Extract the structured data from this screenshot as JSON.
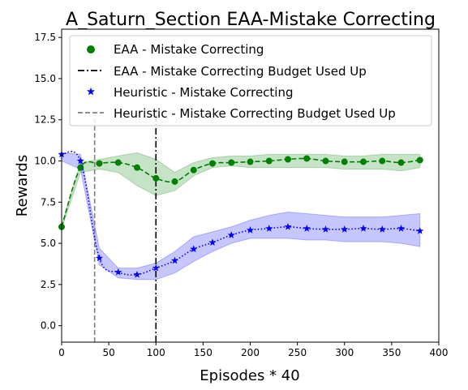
{
  "chart_data": {
    "type": "line",
    "title": "A_Saturn_Section EAA-Mistake Correcting",
    "xlabel": "Episodes * 40",
    "ylabel": "Rewards",
    "xlim": [
      0,
      400
    ],
    "ylim": [
      -1.0,
      18.0
    ],
    "xticks": [
      0,
      50,
      100,
      150,
      200,
      250,
      300,
      350,
      400
    ],
    "yticks": [
      0.0,
      2.5,
      5.0,
      7.5,
      10.0,
      12.5,
      15.0,
      17.5
    ],
    "xtick_labels": [
      "0",
      "50",
      "100",
      "150",
      "200",
      "250",
      "300",
      "350",
      "400"
    ],
    "ytick_labels": [
      "0.0",
      "2.5",
      "5.0",
      "7.5",
      "10.0",
      "12.5",
      "15.0",
      "17.5"
    ],
    "grid": false,
    "legend_position": "top-left",
    "colors": {
      "eaa": "#008000",
      "heuristic": "#0000ff",
      "eaa_budget": "#000000",
      "heuristic_budget": "#808080"
    },
    "series": [
      {
        "name": "EAA - Mistake Correcting",
        "marker": "circle",
        "line_style": "dashed",
        "x": [
          0,
          20,
          40,
          60,
          80,
          100,
          120,
          140,
          160,
          180,
          200,
          220,
          240,
          260,
          280,
          300,
          320,
          340,
          360,
          380
        ],
        "values": [
          6.0,
          9.6,
          9.85,
          9.9,
          9.6,
          8.95,
          8.75,
          9.45,
          9.85,
          9.9,
          9.95,
          10.0,
          10.1,
          10.15,
          10.0,
          9.95,
          9.95,
          10.0,
          9.9,
          10.05
        ],
        "lower": [
          5.9,
          9.3,
          9.5,
          9.3,
          8.5,
          7.9,
          8.2,
          9.1,
          9.6,
          9.7,
          9.6,
          9.6,
          9.6,
          9.6,
          9.6,
          9.5,
          9.5,
          9.5,
          9.4,
          9.6
        ],
        "upper": [
          6.1,
          9.9,
          10.1,
          10.3,
          10.5,
          10.1,
          9.3,
          9.9,
          10.2,
          10.3,
          10.3,
          10.4,
          10.4,
          10.4,
          10.4,
          10.3,
          10.3,
          10.4,
          10.4,
          10.4
        ]
      },
      {
        "name": "Heuristic - Mistake Correcting",
        "marker": "star",
        "line_style": "dotted",
        "x": [
          0,
          20,
          40,
          60,
          80,
          100,
          120,
          140,
          160,
          180,
          200,
          220,
          240,
          260,
          280,
          300,
          320,
          340,
          360,
          380
        ],
        "values": [
          10.4,
          10.0,
          4.1,
          3.25,
          3.1,
          3.5,
          3.95,
          4.65,
          5.05,
          5.5,
          5.8,
          5.9,
          6.0,
          5.9,
          5.85,
          5.85,
          5.9,
          5.85,
          5.9,
          5.75
        ],
        "lower": [
          10.0,
          9.5,
          3.7,
          2.9,
          2.8,
          2.8,
          3.2,
          3.9,
          4.5,
          5.0,
          5.3,
          5.3,
          5.3,
          5.2,
          5.2,
          5.1,
          5.1,
          5.1,
          5.0,
          4.8
        ],
        "upper": [
          10.5,
          10.4,
          4.7,
          3.5,
          3.5,
          3.8,
          4.5,
          5.4,
          5.7,
          6.0,
          6.4,
          6.7,
          6.9,
          6.8,
          6.7,
          6.6,
          6.6,
          6.6,
          6.7,
          6.8
        ]
      }
    ],
    "vlines": [
      {
        "name": "EAA - Mistake Correcting Budget Used Up",
        "x": 100,
        "y_range": [
          -1.0,
          13.0
        ],
        "line_style": "dashdot"
      },
      {
        "name": "Heuristic - Mistake Correcting Budget Used Up",
        "x": 35,
        "y_range": [
          -1.0,
          13.0
        ],
        "line_style": "dashed"
      }
    ]
  }
}
